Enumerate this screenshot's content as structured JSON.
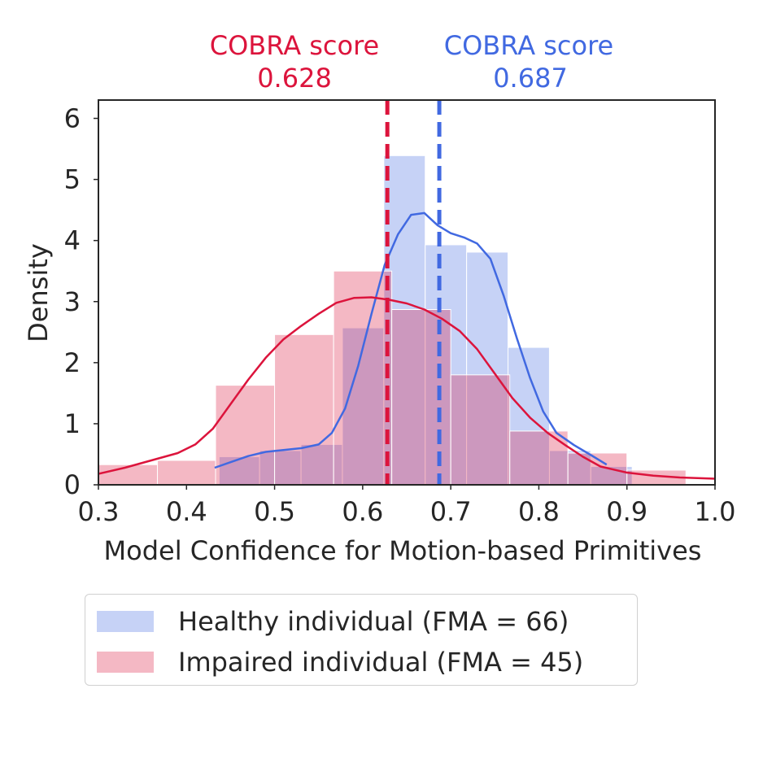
{
  "chart_data": {
    "type": "histogram+kde",
    "xlabel": "Model Confidence for Motion-based Primitives",
    "ylabel": "Density",
    "xlim": [
      0.3,
      1.0
    ],
    "ylim": [
      0,
      6.3
    ],
    "xticks": [
      "0.3",
      "0.4",
      "0.5",
      "0.6",
      "0.7",
      "0.8",
      "0.9",
      "1.0"
    ],
    "yticks": [
      "0",
      "1",
      "2",
      "3",
      "4",
      "5",
      "6"
    ],
    "grid": false,
    "legend_position": "below",
    "series": [
      {
        "name": "Healthy individual (FMA = 66)",
        "color": "#4169e1",
        "bins": [
          {
            "x0": 0.437,
            "x1": 0.483,
            "h": 0.46
          },
          {
            "x0": 0.483,
            "x1": 0.53,
            "h": 0.56
          },
          {
            "x0": 0.53,
            "x1": 0.577,
            "h": 0.66
          },
          {
            "x0": 0.577,
            "x1": 0.624,
            "h": 2.57
          },
          {
            "x0": 0.624,
            "x1": 0.671,
            "h": 5.39
          },
          {
            "x0": 0.671,
            "x1": 0.718,
            "h": 3.93
          },
          {
            "x0": 0.718,
            "x1": 0.765,
            "h": 3.81
          },
          {
            "x0": 0.765,
            "x1": 0.812,
            "h": 2.25
          },
          {
            "x0": 0.812,
            "x1": 0.859,
            "h": 0.56
          },
          {
            "x0": 0.859,
            "x1": 0.906,
            "h": 0.3
          }
        ],
        "kde": [
          [
            0.432,
            0.28
          ],
          [
            0.45,
            0.37
          ],
          [
            0.47,
            0.47
          ],
          [
            0.49,
            0.54
          ],
          [
            0.51,
            0.57
          ],
          [
            0.53,
            0.6
          ],
          [
            0.55,
            0.66
          ],
          [
            0.565,
            0.85
          ],
          [
            0.58,
            1.25
          ],
          [
            0.595,
            1.95
          ],
          [
            0.61,
            2.8
          ],
          [
            0.625,
            3.6
          ],
          [
            0.64,
            4.1
          ],
          [
            0.655,
            4.42
          ],
          [
            0.67,
            4.45
          ],
          [
            0.685,
            4.25
          ],
          [
            0.7,
            4.12
          ],
          [
            0.715,
            4.05
          ],
          [
            0.73,
            3.95
          ],
          [
            0.745,
            3.7
          ],
          [
            0.76,
            3.1
          ],
          [
            0.775,
            2.4
          ],
          [
            0.79,
            1.75
          ],
          [
            0.805,
            1.2
          ],
          [
            0.82,
            0.85
          ],
          [
            0.84,
            0.65
          ],
          [
            0.86,
            0.48
          ],
          [
            0.877,
            0.33
          ]
        ],
        "score_label": "COBRA score",
        "score_value": "0.687",
        "score": 0.687
      },
      {
        "name": "Impaired individual (FMA = 45)",
        "color": "#dc143c",
        "bins": [
          {
            "x0": 0.3,
            "x1": 0.367,
            "h": 0.33
          },
          {
            "x0": 0.367,
            "x1": 0.433,
            "h": 0.4
          },
          {
            "x0": 0.433,
            "x1": 0.5,
            "h": 1.63
          },
          {
            "x0": 0.5,
            "x1": 0.567,
            "h": 2.46
          },
          {
            "x0": 0.567,
            "x1": 0.633,
            "h": 3.5
          },
          {
            "x0": 0.633,
            "x1": 0.7,
            "h": 2.87
          },
          {
            "x0": 0.7,
            "x1": 0.767,
            "h": 1.8
          },
          {
            "x0": 0.767,
            "x1": 0.833,
            "h": 0.88
          },
          {
            "x0": 0.833,
            "x1": 0.9,
            "h": 0.52
          },
          {
            "x0": 0.9,
            "x1": 0.967,
            "h": 0.24
          }
        ],
        "kde": [
          [
            0.3,
            0.18
          ],
          [
            0.33,
            0.28
          ],
          [
            0.36,
            0.4
          ],
          [
            0.39,
            0.52
          ],
          [
            0.41,
            0.66
          ],
          [
            0.43,
            0.92
          ],
          [
            0.45,
            1.32
          ],
          [
            0.47,
            1.72
          ],
          [
            0.49,
            2.08
          ],
          [
            0.51,
            2.38
          ],
          [
            0.53,
            2.6
          ],
          [
            0.55,
            2.8
          ],
          [
            0.57,
            2.98
          ],
          [
            0.59,
            3.06
          ],
          [
            0.61,
            3.07
          ],
          [
            0.63,
            3.03
          ],
          [
            0.65,
            2.97
          ],
          [
            0.67,
            2.87
          ],
          [
            0.69,
            2.72
          ],
          [
            0.71,
            2.52
          ],
          [
            0.73,
            2.22
          ],
          [
            0.75,
            1.82
          ],
          [
            0.77,
            1.42
          ],
          [
            0.79,
            1.1
          ],
          [
            0.81,
            0.85
          ],
          [
            0.83,
            0.65
          ],
          [
            0.85,
            0.46
          ],
          [
            0.87,
            0.3
          ],
          [
            0.9,
            0.2
          ],
          [
            0.93,
            0.15
          ],
          [
            0.96,
            0.12
          ],
          [
            1.0,
            0.1
          ]
        ],
        "score_label": "COBRA score",
        "score_value": "0.628",
        "score": 0.628
      }
    ]
  },
  "legend": {
    "healthy": "Healthy individual (FMA = 66)",
    "impaired": "Impaired individual (FMA = 45)"
  }
}
